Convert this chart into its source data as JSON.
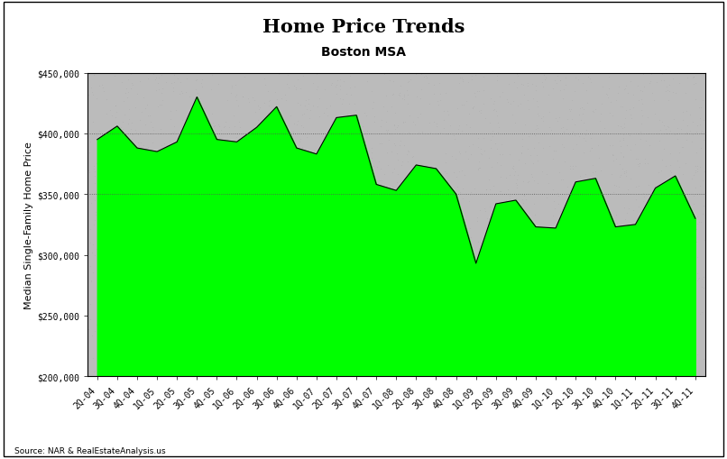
{
  "title": "Home Price Trends",
  "subtitle": "Boston MSA",
  "ylabel": "Median Single-Family Home Price",
  "source": "Source: NAR & RealEstateAnalysis.us",
  "labels": [
    "2Q-04",
    "3Q-04",
    "4Q-04",
    "1Q-05",
    "2Q-05",
    "3Q-05",
    "4Q-05",
    "1Q-06",
    "2Q-06",
    "3Q-06",
    "4Q-06",
    "1Q-07",
    "2Q-07",
    "3Q-07",
    "4Q-07",
    "1Q-08",
    "2Q-08",
    "3Q-08",
    "4Q-08",
    "1Q-09",
    "2Q-09",
    "3Q-09",
    "4Q-09",
    "1Q-10",
    "2Q-10",
    "3Q-10",
    "4Q-10",
    "1Q-11",
    "2Q-11",
    "3Q-11",
    "4Q-11"
  ],
  "values": [
    395000,
    406000,
    388000,
    385000,
    393000,
    430000,
    395000,
    393000,
    405000,
    422000,
    388000,
    383000,
    413000,
    415000,
    358000,
    353000,
    374000,
    371000,
    350000,
    293000,
    342000,
    345000,
    323000,
    322000,
    360000,
    363000,
    323000,
    325000,
    355000,
    365000,
    330000
  ],
  "ylim": [
    200000,
    450000
  ],
  "yticks": [
    200000,
    250000,
    300000,
    350000,
    400000,
    450000
  ],
  "fill_color": "#00FF00",
  "line_color": "#000000",
  "bg_color": "#bbbbbb",
  "plot_bg_color": "#bbbbbb",
  "outer_bg_color": "#ffffff",
  "title_fontsize": 15,
  "subtitle_fontsize": 10,
  "ylabel_fontsize": 8,
  "tick_fontsize": 7,
  "hline_color": "#555555",
  "hline_values": [
    350000,
    400000
  ],
  "border_color": "#000000"
}
